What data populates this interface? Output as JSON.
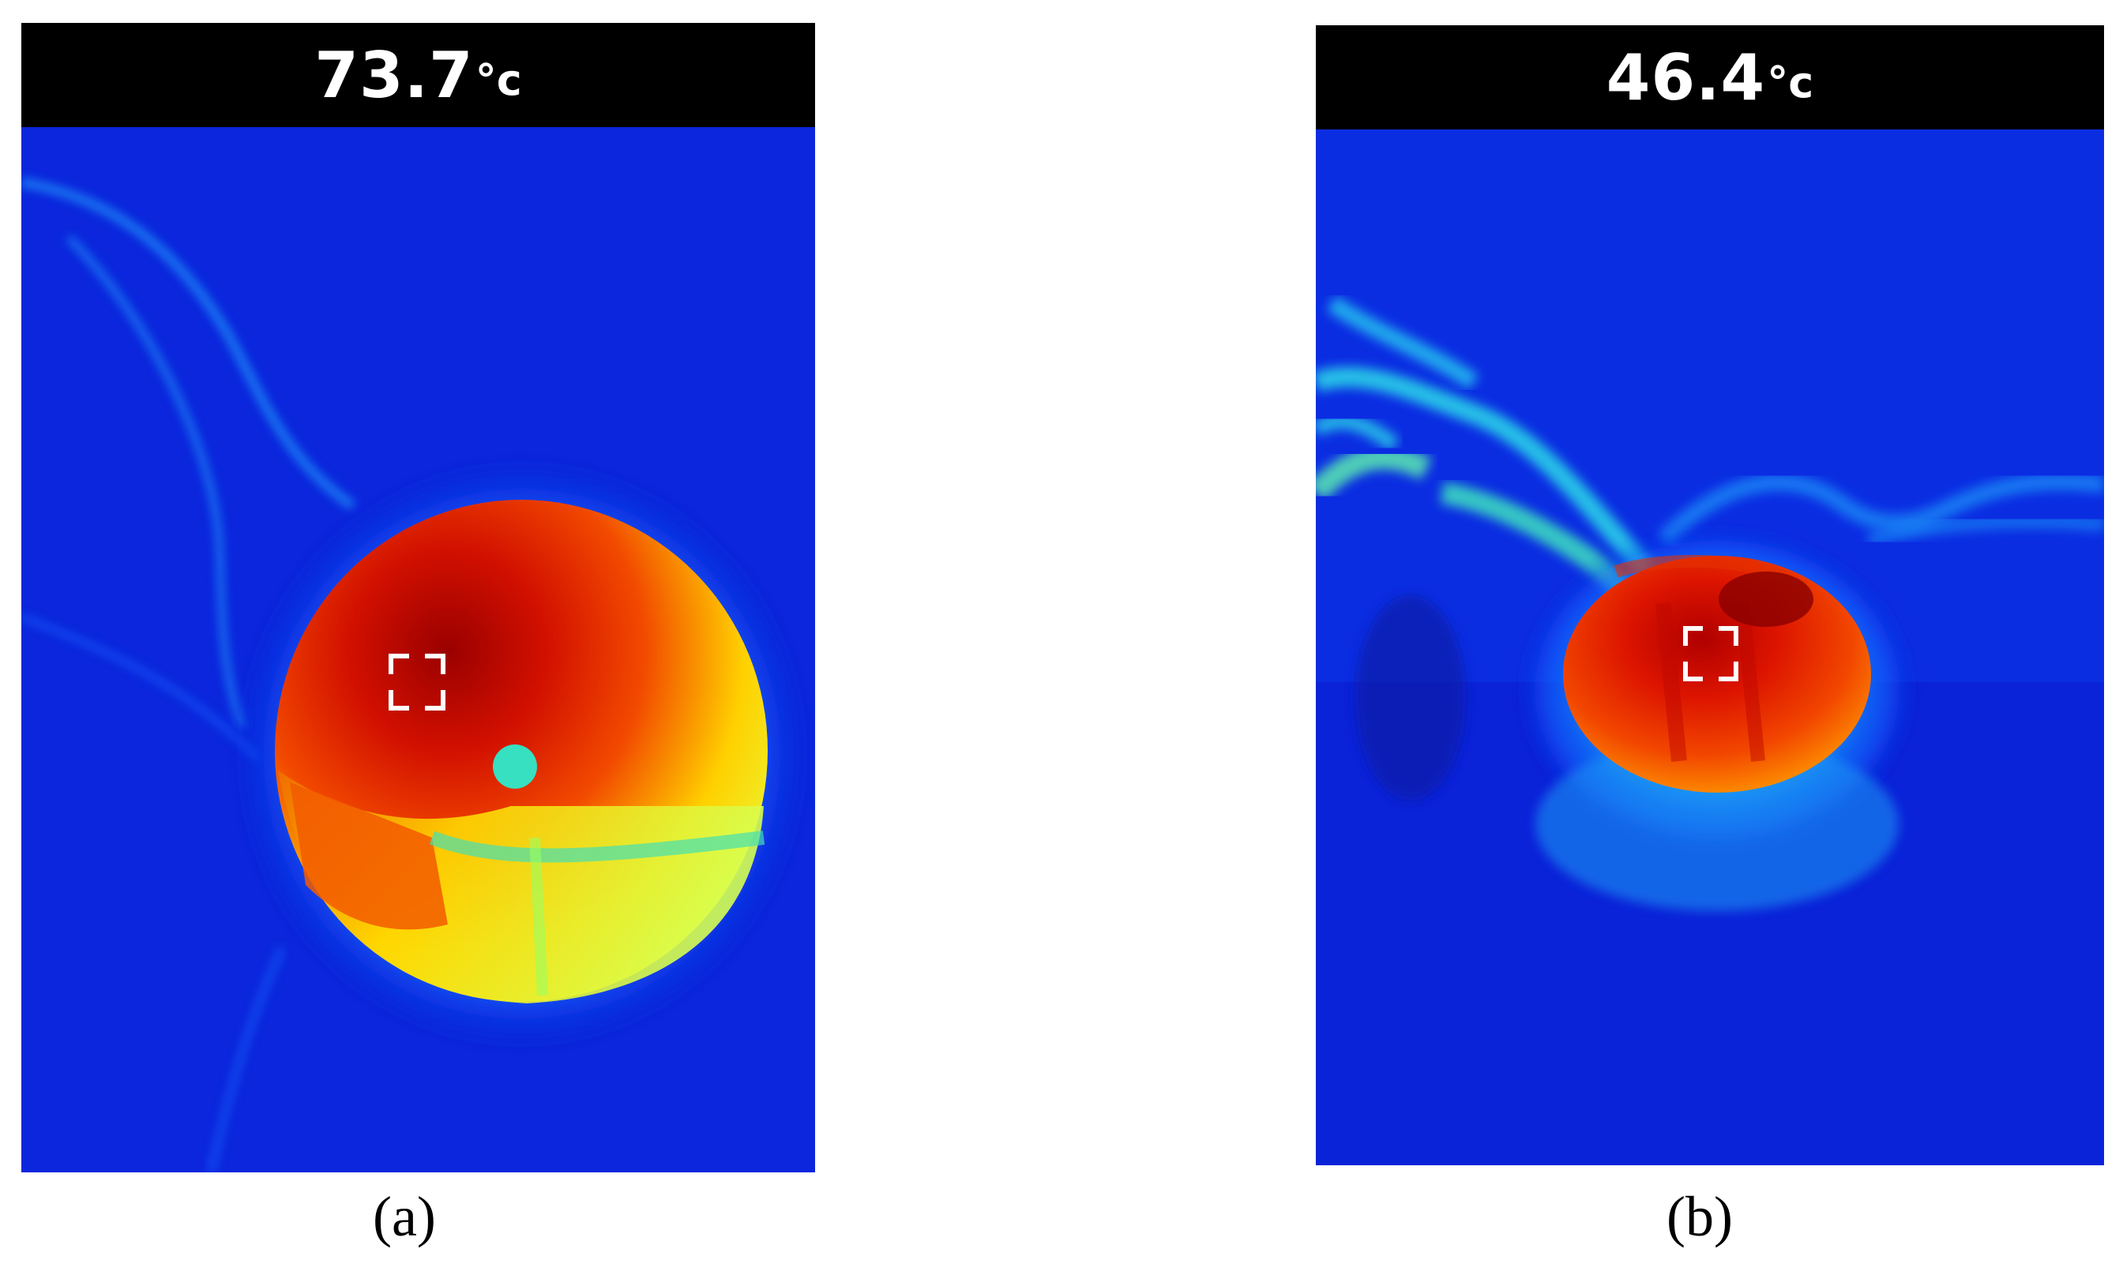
{
  "panels": [
    {
      "temperature": "73.7",
      "unit": "°c",
      "caption": "(a)"
    },
    {
      "temperature": "46.4",
      "unit": "°c",
      "caption": "(b)"
    }
  ],
  "colors": {
    "background_cold": "#0a1fd6",
    "mid": "#1ec8f0",
    "warm": "#ffe400",
    "hot": "#e81800",
    "hottest": "#9a0000",
    "marker": "#ffffff"
  },
  "icons": {
    "spot_marker": "crosshair-bracket-icon"
  }
}
